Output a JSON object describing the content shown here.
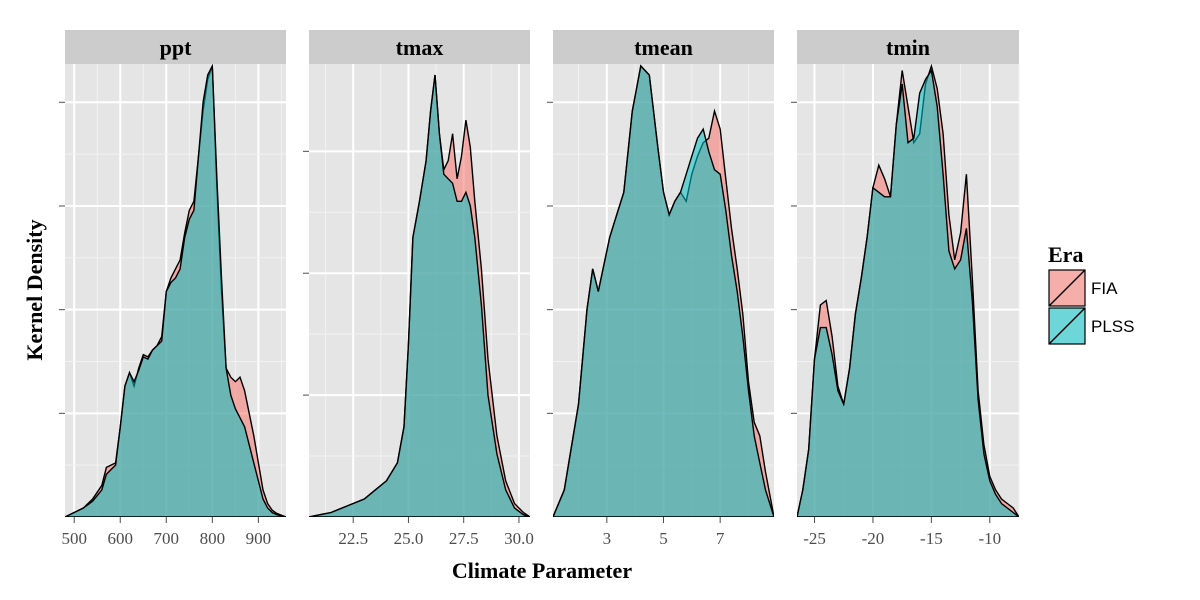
{
  "chart_data": {
    "type": "area",
    "xlabel": "Climate Parameter",
    "ylabel": "Kernel Density",
    "legend": {
      "title": "Era",
      "position": "right",
      "entries": [
        {
          "name": "FIA",
          "color": "#F8766D"
        },
        {
          "name": "PLSS",
          "color": "#00BFC4"
        }
      ]
    },
    "grid": true,
    "panels": [
      {
        "name": "ppt",
        "xlim": [
          480,
          960
        ],
        "ylim": [
          0,
          1.0
        ],
        "xticks": [
          500,
          600,
          700,
          800,
          900
        ],
        "xtick_labels": [
          "500",
          "600",
          "700",
          "800",
          "900"
        ],
        "ytick_count": 4,
        "series": [
          {
            "name": "FIA",
            "x": [
              480,
              500,
              520,
              540,
              560,
              570,
              580,
              590,
              600,
              610,
              620,
              630,
              640,
              650,
              660,
              670,
              680,
              690,
              700,
              710,
              720,
              730,
              740,
              750,
              760,
              770,
              780,
              790,
              800,
              810,
              820,
              830,
              840,
              850,
              860,
              870,
              880,
              890,
              900,
              910,
              920,
              930,
              940,
              960
            ],
            "y": [
              0,
              0.01,
              0.02,
              0.04,
              0.07,
              0.11,
              0.115,
              0.12,
              0.2,
              0.29,
              0.32,
              0.29,
              0.33,
              0.36,
              0.355,
              0.37,
              0.38,
              0.4,
              0.5,
              0.53,
              0.55,
              0.57,
              0.63,
              0.68,
              0.7,
              0.8,
              0.9,
              0.97,
              1.0,
              0.73,
              0.5,
              0.33,
              0.31,
              0.3,
              0.31,
              0.28,
              0.23,
              0.18,
              0.12,
              0.06,
              0.03,
              0.015,
              0.008,
              0
            ]
          },
          {
            "name": "PLSS",
            "x": [
              480,
              500,
              520,
              540,
              560,
              570,
              580,
              590,
              600,
              610,
              620,
              630,
              640,
              650,
              660,
              670,
              680,
              690,
              700,
              710,
              720,
              730,
              740,
              750,
              760,
              770,
              780,
              790,
              800,
              810,
              820,
              830,
              840,
              850,
              860,
              870,
              880,
              890,
              900,
              910,
              920,
              930,
              940,
              960
            ],
            "y": [
              0,
              0.01,
              0.02,
              0.035,
              0.06,
              0.095,
              0.105,
              0.115,
              0.2,
              0.29,
              0.32,
              0.3,
              0.325,
              0.355,
              0.35,
              0.37,
              0.38,
              0.39,
              0.5,
              0.52,
              0.53,
              0.55,
              0.62,
              0.66,
              0.68,
              0.8,
              0.92,
              0.98,
              1.0,
              0.75,
              0.53,
              0.33,
              0.27,
              0.24,
              0.22,
              0.2,
              0.16,
              0.12,
              0.08,
              0.04,
              0.02,
              0.01,
              0.005,
              0
            ]
          }
        ]
      },
      {
        "name": "tmax",
        "xlim": [
          20.5,
          30.5
        ],
        "ylim": [
          0,
          1.0
        ],
        "xticks": [
          22.5,
          25.0,
          27.5,
          30.0
        ],
        "xtick_labels": [
          "22.5",
          "25.0",
          "27.5",
          "30.0"
        ],
        "ytick_count": 3,
        "series": [
          {
            "name": "FIA",
            "x": [
              20.5,
              21,
              21.5,
              22,
              22.5,
              23,
              23.5,
              24,
              24.5,
              24.8,
              25,
              25.2,
              25.5,
              25.8,
              26,
              26.2,
              26.4,
              26.6,
              26.8,
              27,
              27.2,
              27.4,
              27.6,
              27.8,
              28,
              28.3,
              28.6,
              29,
              29.4,
              29.8,
              30.2,
              30.5
            ],
            "y": [
              0,
              0.005,
              0.01,
              0.02,
              0.03,
              0.04,
              0.06,
              0.08,
              0.12,
              0.2,
              0.38,
              0.62,
              0.7,
              0.79,
              0.9,
              0.98,
              0.85,
              0.77,
              0.79,
              0.85,
              0.75,
              0.8,
              0.88,
              0.82,
              0.7,
              0.55,
              0.35,
              0.18,
              0.08,
              0.03,
              0.01,
              0
            ]
          },
          {
            "name": "PLSS",
            "x": [
              20.5,
              21,
              21.5,
              22,
              22.5,
              23,
              23.5,
              24,
              24.5,
              24.8,
              25,
              25.2,
              25.5,
              25.8,
              26,
              26.2,
              26.4,
              26.6,
              26.8,
              27,
              27.2,
              27.4,
              27.6,
              27.8,
              28,
              28.3,
              28.6,
              29,
              29.4,
              29.8,
              30.2,
              30.5
            ],
            "y": [
              0,
              0.005,
              0.01,
              0.02,
              0.03,
              0.04,
              0.06,
              0.08,
              0.12,
              0.2,
              0.38,
              0.62,
              0.7,
              0.79,
              0.9,
              0.98,
              0.85,
              0.76,
              0.75,
              0.74,
              0.7,
              0.7,
              0.72,
              0.69,
              0.62,
              0.47,
              0.27,
              0.14,
              0.06,
              0.02,
              0.005,
              0
            ]
          }
        ]
      },
      {
        "name": "tmean",
        "xlim": [
          1.1,
          8.9
        ],
        "ylim": [
          0,
          1.0
        ],
        "xticks": [
          3,
          5,
          7
        ],
        "xtick_labels": [
          "3",
          "5",
          "7"
        ],
        "ytick_count": 4,
        "series": [
          {
            "name": "FIA",
            "x": [
              1.1,
              1.5,
              2,
              2.3,
              2.5,
              2.7,
              2.9,
              3.1,
              3.3,
              3.6,
              3.9,
              4.2,
              4.5,
              4.8,
              5,
              5.2,
              5.4,
              5.6,
              5.8,
              6,
              6.2,
              6.4,
              6.6,
              6.8,
              7,
              7.2,
              7.4,
              7.6,
              7.8,
              8,
              8.2,
              8.4,
              8.6,
              8.9
            ],
            "y": [
              0,
              0.06,
              0.25,
              0.46,
              0.55,
              0.5,
              0.56,
              0.62,
              0.66,
              0.72,
              0.9,
              1.0,
              0.98,
              0.82,
              0.72,
              0.67,
              0.7,
              0.72,
              0.7,
              0.76,
              0.8,
              0.83,
              0.84,
              0.9,
              0.86,
              0.75,
              0.64,
              0.55,
              0.45,
              0.3,
              0.21,
              0.18,
              0.1,
              0
            ]
          },
          {
            "name": "PLSS",
            "x": [
              1.1,
              1.5,
              2,
              2.3,
              2.5,
              2.7,
              2.9,
              3.1,
              3.3,
              3.6,
              3.9,
              4.2,
              4.5,
              4.8,
              5,
              5.2,
              5.4,
              5.6,
              5.8,
              6,
              6.2,
              6.4,
              6.6,
              6.8,
              7,
              7.2,
              7.4,
              7.6,
              7.8,
              8,
              8.2,
              8.4,
              8.6,
              8.9
            ],
            "y": [
              0,
              0.06,
              0.25,
              0.46,
              0.55,
              0.5,
              0.56,
              0.62,
              0.66,
              0.72,
              0.9,
              1.0,
              0.98,
              0.82,
              0.72,
              0.67,
              0.7,
              0.72,
              0.76,
              0.8,
              0.84,
              0.86,
              0.81,
              0.77,
              0.76,
              0.68,
              0.58,
              0.5,
              0.4,
              0.28,
              0.18,
              0.12,
              0.06,
              0
            ]
          }
        ]
      },
      {
        "name": "tmin",
        "xlim": [
          -26.5,
          -7.5
        ],
        "ylim": [
          0,
          1.0
        ],
        "xticks": [
          -25,
          -20,
          -15,
          -10
        ],
        "xtick_labels": [
          "-25",
          "-20",
          "-15",
          "-10"
        ],
        "ytick_count": 4,
        "series": [
          {
            "name": "FIA",
            "x": [
              -26.5,
              -26,
              -25.5,
              -25,
              -24.5,
              -24,
              -23.5,
              -23,
              -22.5,
              -22,
              -21.5,
              -21,
              -20.5,
              -20,
              -19.5,
              -19,
              -18.5,
              -18,
              -17.5,
              -17,
              -16.5,
              -16,
              -15.5,
              -15,
              -14.5,
              -14,
              -13.5,
              -13,
              -12.5,
              -12,
              -11.5,
              -11,
              -10.5,
              -10,
              -9.5,
              -9,
              -8.5,
              -8,
              -7.5
            ],
            "y": [
              0,
              0.06,
              0.15,
              0.35,
              0.47,
              0.48,
              0.4,
              0.29,
              0.25,
              0.33,
              0.45,
              0.53,
              0.62,
              0.73,
              0.78,
              0.75,
              0.71,
              0.87,
              0.99,
              0.91,
              0.83,
              0.85,
              0.96,
              1.0,
              0.95,
              0.85,
              0.67,
              0.57,
              0.63,
              0.76,
              0.53,
              0.28,
              0.16,
              0.09,
              0.06,
              0.04,
              0.03,
              0.02,
              0
            ]
          },
          {
            "name": "PLSS",
            "x": [
              -26.5,
              -26,
              -25.5,
              -25,
              -24.5,
              -24,
              -23.5,
              -23,
              -22.5,
              -22,
              -21.5,
              -21,
              -20.5,
              -20,
              -19.5,
              -19,
              -18.5,
              -18,
              -17.5,
              -17,
              -16.5,
              -16,
              -15.5,
              -15,
              -14.5,
              -14,
              -13.5,
              -13,
              -12.5,
              -12,
              -11.5,
              -11,
              -10.5,
              -10,
              -9.5,
              -9,
              -8.5,
              -8,
              -7.5
            ],
            "y": [
              0,
              0.06,
              0.15,
              0.35,
              0.42,
              0.42,
              0.36,
              0.28,
              0.25,
              0.33,
              0.45,
              0.53,
              0.62,
              0.73,
              0.72,
              0.71,
              0.71,
              0.87,
              0.96,
              0.83,
              0.84,
              0.94,
              0.97,
              0.99,
              0.91,
              0.76,
              0.59,
              0.55,
              0.57,
              0.64,
              0.48,
              0.26,
              0.14,
              0.08,
              0.05,
              0.03,
              0.02,
              0.01,
              0
            ]
          }
        ]
      }
    ]
  }
}
